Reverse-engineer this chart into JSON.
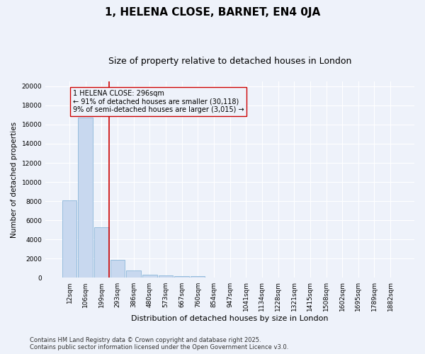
{
  "title": "1, HELENA CLOSE, BARNET, EN4 0JA",
  "subtitle": "Size of property relative to detached houses in London",
  "xlabel": "Distribution of detached houses by size in London",
  "ylabel": "Number of detached properties",
  "categories": [
    "12sqm",
    "106sqm",
    "199sqm",
    "293sqm",
    "386sqm",
    "480sqm",
    "573sqm",
    "667sqm",
    "760sqm",
    "854sqm",
    "947sqm",
    "1041sqm",
    "1134sqm",
    "1228sqm",
    "1321sqm",
    "1415sqm",
    "1508sqm",
    "1602sqm",
    "1695sqm",
    "1789sqm",
    "1882sqm"
  ],
  "values": [
    8100,
    16700,
    5300,
    1850,
    750,
    350,
    250,
    200,
    150,
    0,
    0,
    0,
    0,
    0,
    0,
    0,
    0,
    0,
    0,
    0,
    0
  ],
  "bar_color": "#c8d8ef",
  "bar_edgecolor": "#7aadd4",
  "vline_color": "#cc0000",
  "annotation_text": "1 HELENA CLOSE: 296sqm\n← 91% of detached houses are smaller (30,118)\n9% of semi-detached houses are larger (3,015) →",
  "ylim": [
    0,
    20500
  ],
  "yticks": [
    0,
    2000,
    4000,
    6000,
    8000,
    10000,
    12000,
    14000,
    16000,
    18000,
    20000
  ],
  "background_color": "#eef2fa",
  "grid_color": "#ffffff",
  "footer": "Contains HM Land Registry data © Crown copyright and database right 2025.\nContains public sector information licensed under the Open Government Licence v3.0.",
  "title_fontsize": 11,
  "subtitle_fontsize": 9,
  "ylabel_fontsize": 7.5,
  "xlabel_fontsize": 8,
  "tick_fontsize": 6.5,
  "annotation_fontsize": 7,
  "footer_fontsize": 6
}
